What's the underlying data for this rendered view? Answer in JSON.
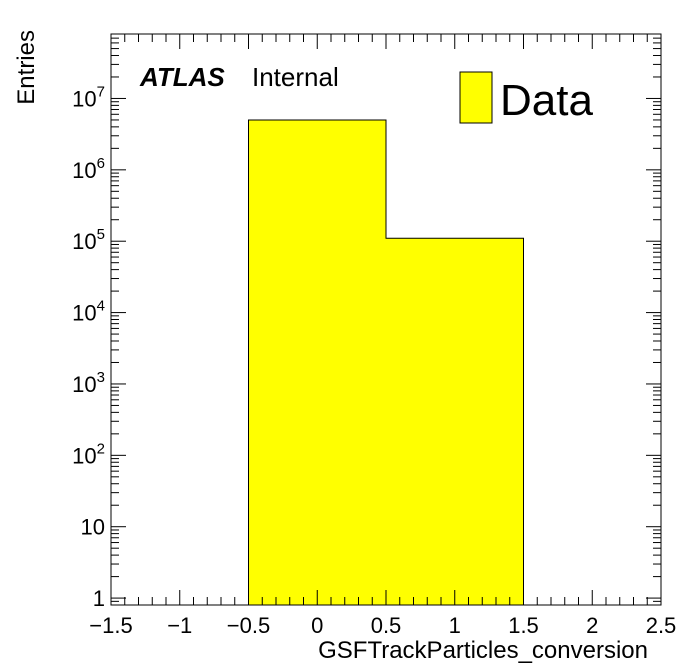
{
  "chart_data": {
    "type": "bar",
    "title": "",
    "xlabel": "GSFTrackParticles_conversion",
    "ylabel": "Entries",
    "x_scale": "linear",
    "y_scale": "log",
    "xlim": [
      -1.5,
      2.5
    ],
    "ylim": [
      0.8,
      80000000
    ],
    "bins": [
      {
        "low": -0.5,
        "high": 0.5,
        "value": 5000000
      },
      {
        "low": 0.5,
        "high": 1.5,
        "value": 110000
      }
    ],
    "x_ticks": [
      {
        "value": -1.5,
        "label": "−1.5"
      },
      {
        "value": -1,
        "label": "−1"
      },
      {
        "value": -0.5,
        "label": "−0.5"
      },
      {
        "value": 0,
        "label": "0"
      },
      {
        "value": 0.5,
        "label": "0.5"
      },
      {
        "value": 1,
        "label": "1"
      },
      {
        "value": 1.5,
        "label": "1.5"
      },
      {
        "value": 2,
        "label": "2"
      },
      {
        "value": 2.5,
        "label": "2.5"
      }
    ],
    "y_ticks": [
      {
        "value": 1,
        "base": "1",
        "exp": ""
      },
      {
        "value": 10,
        "base": "10",
        "exp": ""
      },
      {
        "value": 100,
        "base": "10",
        "exp": "2"
      },
      {
        "value": 1000,
        "base": "10",
        "exp": "3"
      },
      {
        "value": 10000,
        "base": "10",
        "exp": "4"
      },
      {
        "value": 100000,
        "base": "10",
        "exp": "5"
      },
      {
        "value": 1000000,
        "base": "10",
        "exp": "6"
      },
      {
        "value": 10000000,
        "base": "10",
        "exp": "7"
      }
    ],
    "grid": false,
    "legend": {
      "placement": "top-right",
      "entries": [
        {
          "label": "Data",
          "color": "#ffff00"
        }
      ]
    },
    "annotations": {
      "atlas": "ATLAS",
      "status": "Internal"
    },
    "colors": {
      "fill": "#ffff00",
      "edge": "#000000"
    }
  }
}
